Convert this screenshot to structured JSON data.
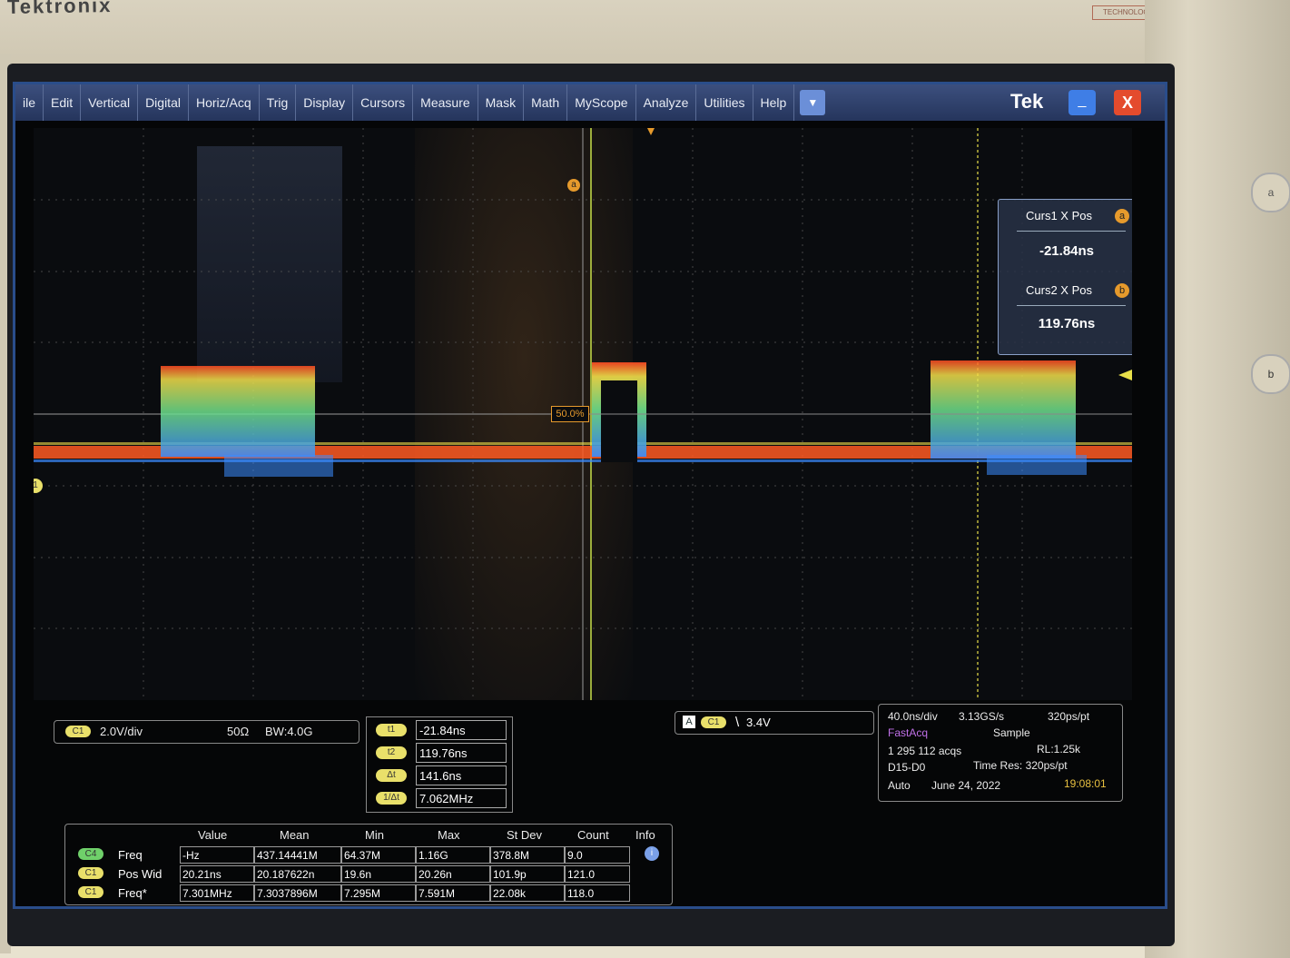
{
  "bezel": {
    "brand": "Tektronix",
    "badge": "TECHNOLOGY",
    "knob_a": "a",
    "knob_b": "b"
  },
  "menu": {
    "items": [
      "ile",
      "Edit",
      "Vertical",
      "Digital",
      "Horiz/Acq",
      "Trig",
      "Display",
      "Cursors",
      "Measure",
      "Mask",
      "Math",
      "MyScope",
      "Analyze",
      "Utilities",
      "Help"
    ],
    "dropdown": "▼",
    "logo": "Tek",
    "minimize": "_",
    "close": "X"
  },
  "graticule": {
    "trigger_label": "50.0%",
    "cursor_a_marker": "a",
    "ch1_marker": "1"
  },
  "cursor_readout": {
    "curs1_label": "Curs1 X Pos",
    "curs1_value": "-21.84ns",
    "curs1_badge": "a",
    "curs2_label": "Curs2 X Pos",
    "curs2_value": "119.76ns",
    "curs2_badge": "b"
  },
  "channel": {
    "tag": "C1",
    "scale": "2.0V/div",
    "impedance": "50Ω",
    "bandwidth": "BW:4.0G"
  },
  "cursor_table": [
    {
      "tag": "t1",
      "value": "-21.84ns"
    },
    {
      "tag": "t2",
      "value": "119.76ns"
    },
    {
      "tag": "Δt",
      "value": "141.6ns"
    },
    {
      "tag": "1/Δt",
      "value": "7.062MHz"
    }
  ],
  "trigger": {
    "source_tag": "A",
    "channel_tag": "C1",
    "slope": "\\",
    "level": "3.4V"
  },
  "acquisition": {
    "horiz": "40.0ns/div",
    "rate": "3.13GS/s",
    "resolution": "320ps/pt",
    "mode": "FastAcq",
    "sample": "Sample",
    "acqs": "1 295 112 acqs",
    "record": "RL:1.25k",
    "digital": "D15-D0",
    "time_res": "Time Res: 320ps/pt",
    "trigger_mode": "Auto",
    "date": "June 24, 2022",
    "time": "19:08:01",
    "fastacq_color": "#c070e8",
    "time_color": "#e8c040"
  },
  "measurements": {
    "headers": [
      "Value",
      "Mean",
      "Min",
      "Max",
      "St Dev",
      "Count",
      "Info"
    ],
    "rows": [
      {
        "tag": "C4",
        "label": "Freq",
        "cells": [
          "-Hz",
          "437.14441M",
          "64.37M",
          "1.16G",
          "378.8M",
          "9.0"
        ]
      },
      {
        "tag": "C1",
        "label": "Pos Wid",
        "cells": [
          "20.21ns",
          "20.187622n",
          "19.6n",
          "20.26n",
          "101.9p",
          "121.0"
        ]
      },
      {
        "tag": "C1",
        "label": "Freq*",
        "cells": [
          "7.301MHz",
          "7.3037896M",
          "7.295M",
          "7.591M",
          "22.08k",
          "118.0"
        ]
      }
    ],
    "info_icon": "i"
  }
}
